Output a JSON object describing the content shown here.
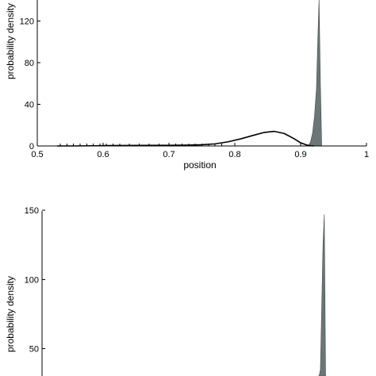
{
  "colors": {
    "axis": "#000000",
    "curve": "#000000",
    "histogram_fill": "#6b7776",
    "background": "#ffffff"
  },
  "chart_data": [
    {
      "type": "area",
      "xlabel": "position",
      "ylabel": "probability density",
      "xlim": [
        0.5,
        1
      ],
      "ylim": [
        0,
        140
      ],
      "xticks": [
        0.5,
        0.6,
        0.7,
        0.8,
        0.9,
        1
      ],
      "xtick_labels": [
        "0.5",
        "0.6",
        "0.7",
        "0.8",
        "0.9",
        "1"
      ],
      "yticks": [
        0,
        40,
        80,
        120
      ],
      "ytick_labels": [
        "0",
        "40",
        "80",
        "120"
      ],
      "grid": false,
      "series": [
        {
          "style": "line",
          "color": "#000000",
          "x": [
            0.53,
            0.55,
            0.6,
            0.65,
            0.7,
            0.73,
            0.75,
            0.77,
            0.79,
            0.81,
            0.83,
            0.845,
            0.86,
            0.875,
            0.89,
            0.9,
            0.91,
            0.915,
            0.92
          ],
          "y": [
            0,
            0,
            0.3,
            0.5,
            0.6,
            0.8,
            1.2,
            2,
            4,
            7,
            10.5,
            13,
            14,
            12,
            7,
            3,
            0.8,
            0.3,
            0
          ]
        },
        {
          "style": "filled",
          "color": "#6b7776",
          "x": [
            0.912,
            0.915,
            0.918,
            0.921,
            0.924,
            0.926,
            0.928,
            0.93,
            0.932
          ],
          "y": [
            0,
            4,
            12,
            28,
            55,
            100,
            150,
            60,
            0
          ]
        }
      ],
      "rug_x": [
        0.535,
        0.545,
        0.555,
        0.565,
        0.575,
        0.585,
        0.595,
        0.605,
        0.615,
        0.625,
        0.64,
        0.655,
        0.67,
        0.685,
        0.7,
        0.71,
        0.72,
        0.73,
        0.74,
        0.75,
        0.76,
        0.77,
        0.78
      ]
    },
    {
      "type": "area",
      "xlabel": "",
      "ylabel": "probability density",
      "xlim": [
        0.5,
        1
      ],
      "ylim": [
        0,
        150
      ],
      "yticks": [
        50,
        100,
        150
      ],
      "ytick_labels": [
        "50",
        "100",
        "150"
      ],
      "grid": false,
      "series": [
        {
          "style": "filled",
          "color": "#6b7776",
          "x": [
            0.925,
            0.927,
            0.929,
            0.931,
            0.933,
            0.935,
            0.937
          ],
          "y": [
            0,
            10,
            35,
            80,
            125,
            147,
            0
          ]
        }
      ]
    }
  ]
}
